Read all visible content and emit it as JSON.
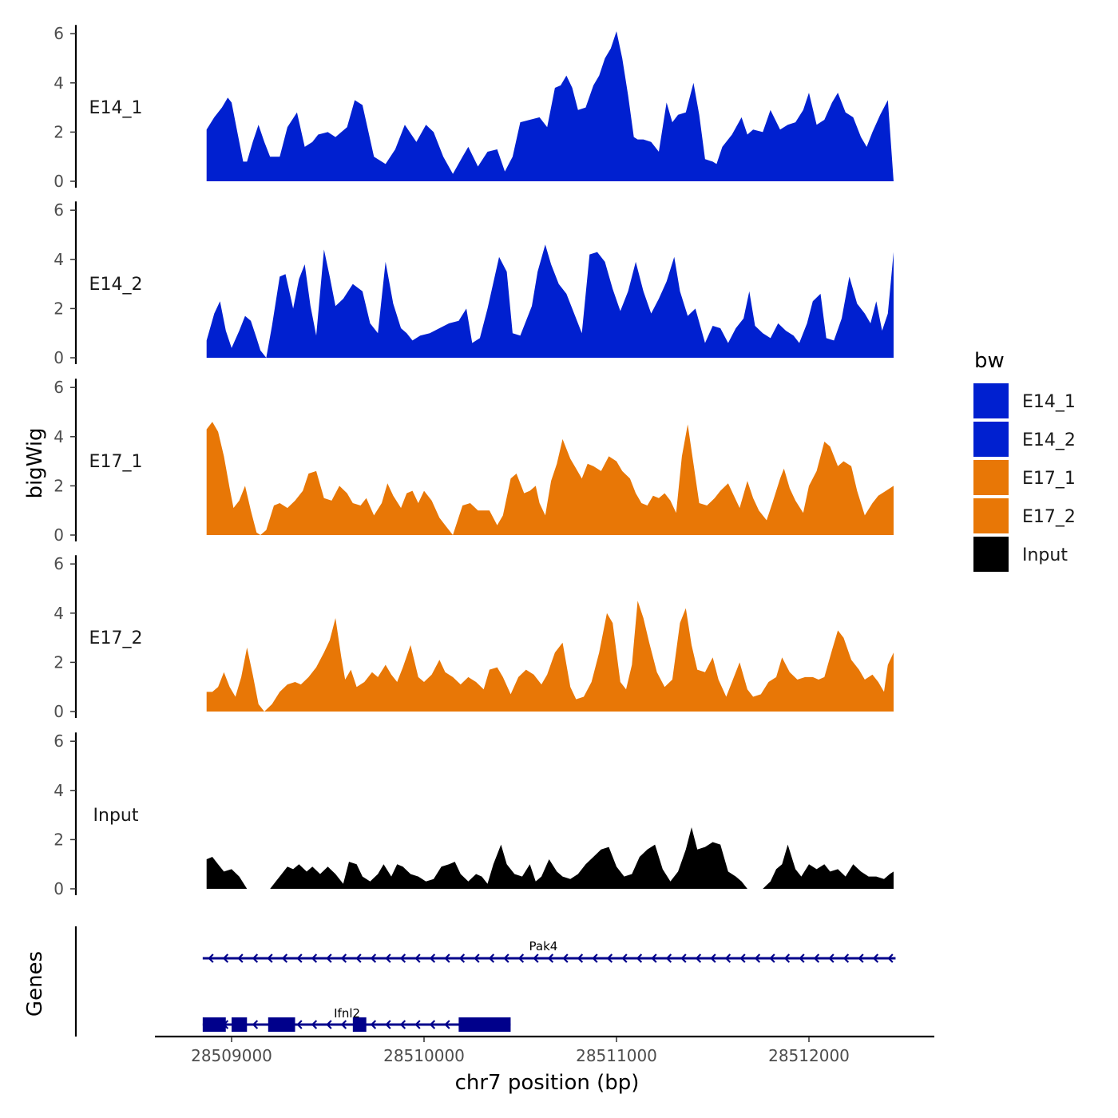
{
  "chart_data": {
    "type": "area",
    "title": "",
    "xlabel": "chr7 position (bp)",
    "ylabel": "bigWig",
    "genes_label": "Genes",
    "xlim": [
      28508650,
      28512630
    ],
    "ylim": [
      0,
      6.3
    ],
    "x_ticks": [
      28509000,
      28510000,
      28511000,
      28512000
    ],
    "x_tick_labels": [
      "28509000",
      "28510000",
      "28511000",
      "28512000"
    ],
    "y_ticks": [
      0,
      2,
      4,
      6
    ],
    "y_tick_labels": [
      "0",
      "2",
      "4",
      "6"
    ],
    "legend": {
      "title": "bw",
      "position": "right",
      "entries": [
        {
          "name": "E14_1",
          "color": "#0020d0"
        },
        {
          "name": "E14_2",
          "color": "#0020d0"
        },
        {
          "name": "E17_1",
          "color": "#e87706"
        },
        {
          "name": "E17_2",
          "color": "#e87706"
        },
        {
          "name": "Input",
          "color": "#000000"
        }
      ]
    },
    "series": [
      {
        "name": "E14_1",
        "color": "#0020d0",
        "x": [
          28508870,
          28508910,
          28508950,
          28508980,
          28509000,
          28509030,
          28509060,
          28509080,
          28509110,
          28509140,
          28509170,
          28509200,
          28509250,
          28509290,
          28509340,
          28509380,
          28509420,
          28509450,
          28509500,
          28509540,
          28509600,
          28509640,
          28509680,
          28509740,
          28509800,
          28509850,
          28509900,
          28509960,
          28510010,
          28510050,
          28510100,
          28510150,
          28510200,
          28510230,
          28510280,
          28510330,
          28510380,
          28510420,
          28510460,
          28510500,
          28510550,
          28510600,
          28510640,
          28510680,
          28510710,
          28510740,
          28510770,
          28510800,
          28510840,
          28510880,
          28510910,
          28510940,
          28510970,
          28511000,
          28511030,
          28511060,
          28511090,
          28511110,
          28511140,
          28511180,
          28511220,
          28511260,
          28511290,
          28511320,
          28511360,
          28511400,
          28511430,
          28511460,
          28511500,
          28511520,
          28511550,
          28511600,
          28511650,
          28511680,
          28511710,
          28511760,
          28511800,
          28511850,
          28511890,
          28511930,
          28511970,
          28512000,
          28512040,
          28512080,
          28512120,
          28512150,
          28512190,
          28512230,
          28512270,
          28512300,
          28512330,
          28512370,
          28512410,
          28512440
        ],
        "y": [
          2.1,
          2.6,
          3.0,
          3.4,
          3.2,
          2.0,
          0.8,
          0.8,
          1.6,
          2.3,
          1.6,
          1.0,
          1.0,
          2.2,
          2.8,
          1.4,
          1.6,
          1.9,
          2.0,
          1.8,
          2.2,
          3.3,
          3.1,
          1.0,
          0.7,
          1.3,
          2.3,
          1.6,
          2.3,
          2.0,
          1.0,
          0.3,
          1.0,
          1.4,
          0.6,
          1.2,
          1.3,
          0.4,
          1.0,
          2.4,
          2.5,
          2.6,
          2.2,
          3.8,
          3.9,
          4.3,
          3.8,
          2.9,
          3.0,
          3.9,
          4.3,
          5.0,
          5.4,
          6.1,
          5.0,
          3.5,
          1.8,
          1.7,
          1.7,
          1.6,
          1.2,
          3.2,
          2.4,
          2.7,
          2.8,
          4.0,
          2.7,
          0.9,
          0.8,
          0.7,
          1.4,
          1.9,
          2.6,
          1.9,
          2.1,
          2.0,
          2.9,
          2.1,
          2.3,
          2.4,
          2.9,
          3.6,
          2.3,
          2.5,
          3.2,
          3.6,
          2.8,
          2.6,
          1.8,
          1.4,
          2.0,
          2.7,
          3.3,
          0.0
        ]
      },
      {
        "name": "E14_2",
        "color": "#0020d0",
        "x": [
          28508870,
          28508910,
          28508940,
          28508970,
          28509000,
          28509040,
          28509070,
          28509100,
          28509130,
          28509150,
          28509180,
          28509210,
          28509250,
          28509280,
          28509320,
          28509350,
          28509380,
          28509410,
          28509440,
          28509480,
          28509510,
          28509540,
          28509580,
          28509630,
          28509680,
          28509720,
          28509760,
          28509800,
          28509840,
          28509880,
          28509910,
          28509940,
          28509980,
          28510030,
          28510080,
          28510130,
          28510180,
          28510220,
          28510250,
          28510290,
          28510330,
          28510390,
          28510430,
          28510460,
          28510500,
          28510560,
          28510590,
          28510630,
          28510660,
          28510700,
          28510740,
          28510780,
          28510820,
          28510860,
          28510900,
          28510940,
          28510980,
          28511020,
          28511060,
          28511100,
          28511140,
          28511180,
          28511220,
          28511260,
          28511300,
          28511330,
          28511370,
          28511410,
          28511460,
          28511500,
          28511540,
          28511580,
          28511620,
          28511660,
          28511690,
          28511720,
          28511760,
          28511800,
          28511840,
          28511880,
          28511920,
          28511950,
          28511990,
          28512020,
          28512060,
          28512090,
          28512130,
          28512170,
          28512210,
          28512250,
          28512290,
          28512320,
          28512350,
          28512380,
          28512410,
          28512440
        ],
        "y": [
          0.7,
          1.8,
          2.3,
          1.1,
          0.4,
          1.1,
          1.7,
          1.5,
          0.8,
          0.3,
          0.0,
          1.3,
          3.3,
          3.4,
          2.0,
          3.2,
          3.8,
          2.1,
          0.9,
          4.4,
          3.3,
          2.1,
          2.4,
          3.0,
          2.7,
          1.4,
          1.0,
          3.9,
          2.2,
          1.2,
          1.0,
          0.7,
          0.9,
          1.0,
          1.2,
          1.4,
          1.5,
          2.0,
          0.6,
          0.8,
          2.0,
          4.1,
          3.5,
          1.0,
          0.9,
          2.1,
          3.5,
          4.6,
          3.8,
          3.0,
          2.6,
          1.8,
          1.0,
          4.2,
          4.3,
          3.9,
          2.8,
          1.9,
          2.7,
          3.9,
          2.7,
          1.8,
          2.4,
          3.1,
          4.1,
          2.7,
          1.7,
          2.0,
          0.6,
          1.3,
          1.2,
          0.6,
          1.2,
          1.6,
          2.7,
          1.3,
          1.0,
          0.8,
          1.4,
          1.1,
          0.9,
          0.6,
          1.4,
          2.3,
          2.6,
          0.8,
          0.7,
          1.6,
          3.3,
          2.2,
          1.8,
          1.4,
          2.3,
          1.1,
          1.8,
          4.3
        ]
      },
      {
        "name": "E17_1",
        "color": "#e87706",
        "x": [
          28508870,
          28508900,
          28508930,
          28508960,
          28508990,
          28509010,
          28509040,
          28509070,
          28509100,
          28509130,
          28509150,
          28509180,
          28509220,
          28509250,
          28509290,
          28509330,
          28509370,
          28509400,
          28509440,
          28509480,
          28509520,
          28509560,
          28509600,
          28509630,
          28509670,
          28509700,
          28509740,
          28509780,
          28509810,
          28509840,
          28509880,
          28509910,
          28509940,
          28509970,
          28510000,
          28510040,
          28510080,
          28510110,
          28510150,
          28510200,
          28510240,
          28510280,
          28510300,
          28510340,
          28510380,
          28510410,
          28510450,
          28510480,
          28510520,
          28510550,
          28510580,
          28510600,
          28510630,
          28510660,
          28510690,
          28510720,
          28510760,
          28510790,
          28510820,
          28510850,
          28510880,
          28510920,
          28510960,
          28511000,
          28511030,
          28511070,
          28511100,
          28511130,
          28511160,
          28511190,
          28511220,
          28511250,
          28511280,
          28511310,
          28511340,
          28511370,
          28511400,
          28511430,
          28511470,
          28511510,
          28511540,
          28511580,
          28511610,
          28511640,
          28511680,
          28511710,
          28511740,
          28511780,
          28511810,
          28511850,
          28511870,
          28511900,
          28511930,
          28511970,
          28512000,
          28512040,
          28512080,
          28512110,
          28512150,
          28512180,
          28512220,
          28512250,
          28512290,
          28512330,
          28512360,
          28512400,
          28512440
        ],
        "y": [
          4.3,
          4.6,
          4.2,
          3.2,
          1.9,
          1.1,
          1.4,
          2.0,
          1.0,
          0.1,
          0.0,
          0.2,
          1.2,
          1.3,
          1.1,
          1.4,
          1.8,
          2.5,
          2.6,
          1.5,
          1.4,
          2.0,
          1.7,
          1.3,
          1.2,
          1.5,
          0.8,
          1.3,
          2.1,
          1.6,
          1.1,
          1.7,
          1.8,
          1.3,
          1.8,
          1.4,
          0.7,
          0.4,
          0.0,
          1.2,
          1.3,
          1.0,
          1.0,
          1.0,
          0.4,
          0.8,
          2.3,
          2.5,
          1.7,
          1.8,
          2.0,
          1.3,
          0.8,
          2.2,
          2.9,
          3.9,
          3.1,
          2.7,
          2.3,
          2.9,
          2.8,
          2.6,
          3.2,
          3.0,
          2.6,
          2.3,
          1.7,
          1.3,
          1.2,
          1.6,
          1.5,
          1.7,
          1.4,
          0.9,
          3.2,
          4.5,
          2.9,
          1.3,
          1.2,
          1.5,
          1.8,
          2.1,
          1.6,
          1.1,
          2.2,
          1.5,
          1.0,
          0.6,
          1.3,
          2.3,
          2.7,
          1.9,
          1.4,
          0.9,
          2.0,
          2.6,
          3.8,
          3.6,
          2.8,
          3.0,
          2.8,
          1.8,
          0.8,
          1.3,
          1.6,
          1.8,
          2.0
        ]
      },
      {
        "name": "E17_2",
        "color": "#e87706",
        "x": [
          28508870,
          28508900,
          28508930,
          28508960,
          28508990,
          28509020,
          28509050,
          28509080,
          28509110,
          28509140,
          28509170,
          28509210,
          28509250,
          28509290,
          28509330,
          28509360,
          28509400,
          28509440,
          28509480,
          28509510,
          28509540,
          28509570,
          28509590,
          28509620,
          28509650,
          28509690,
          28509730,
          28509760,
          28509800,
          28509830,
          28509860,
          28509890,
          28509930,
          28509970,
          28510000,
          28510040,
          28510080,
          28510110,
          28510150,
          28510190,
          28510230,
          28510270,
          28510310,
          28510340,
          28510380,
          28510410,
          28510450,
          28510490,
          28510530,
          28510570,
          28510610,
          28510640,
          28510680,
          28510720,
          28510760,
          28510790,
          28510830,
          28510870,
          28510910,
          28510950,
          28510980,
          28511020,
          28511050,
          28511080,
          28511110,
          28511140,
          28511170,
          28511210,
          28511250,
          28511290,
          28511330,
          28511360,
          28511390,
          28511420,
          28511460,
          28511500,
          28511530,
          28511570,
          28511610,
          28511640,
          28511680,
          28511710,
          28511750,
          28511790,
          28511830,
          28511860,
          28511900,
          28511940,
          28511980,
          28512020,
          28512050,
          28512080,
          28512120,
          28512150,
          28512180,
          28512220,
          28512260,
          28512290,
          28512330,
          28512360,
          28512390,
          28512410,
          28512440
        ],
        "y": [
          0.8,
          0.8,
          1.0,
          1.6,
          1.0,
          0.6,
          1.4,
          2.6,
          1.5,
          0.3,
          0.0,
          0.3,
          0.8,
          1.1,
          1.2,
          1.1,
          1.4,
          1.8,
          2.4,
          2.9,
          3.8,
          2.2,
          1.3,
          1.7,
          1.0,
          1.2,
          1.6,
          1.4,
          1.9,
          1.5,
          1.2,
          1.8,
          2.7,
          1.4,
          1.2,
          1.5,
          2.1,
          1.6,
          1.4,
          1.1,
          1.4,
          1.2,
          0.9,
          1.7,
          1.8,
          1.4,
          0.7,
          1.4,
          1.7,
          1.5,
          1.1,
          1.5,
          2.4,
          2.8,
          1.0,
          0.5,
          0.6,
          1.2,
          2.4,
          4.0,
          3.6,
          1.2,
          0.9,
          1.9,
          4.5,
          3.8,
          2.8,
          1.6,
          1.0,
          1.3,
          3.6,
          4.2,
          2.7,
          1.7,
          1.6,
          2.2,
          1.3,
          0.6,
          1.4,
          2.0,
          0.9,
          0.6,
          0.7,
          1.2,
          1.4,
          2.2,
          1.6,
          1.3,
          1.4,
          1.4,
          1.3,
          1.4,
          2.5,
          3.3,
          3.0,
          2.1,
          1.7,
          1.3,
          1.5,
          1.2,
          0.8,
          1.9,
          2.4
        ]
      },
      {
        "name": "Input",
        "color": "#000000",
        "x": [
          28508870,
          28508900,
          28508930,
          28508960,
          28509000,
          28509040,
          28509080,
          28509110,
          28509140,
          28509170,
          28509200,
          28509230,
          28509260,
          28509290,
          28509320,
          28509350,
          28509390,
          28509420,
          28509460,
          28509500,
          28509540,
          28509580,
          28509610,
          28509650,
          28509680,
          28509720,
          28509760,
          28509790,
          28509830,
          28509860,
          28509890,
          28509930,
          28509970,
          28510010,
          28510050,
          28510090,
          28510130,
          28510160,
          28510190,
          28510230,
          28510270,
          28510300,
          28510330,
          28510360,
          28510400,
          28510430,
          28510470,
          28510510,
          28510550,
          28510580,
          28510610,
          28510650,
          28510690,
          28510720,
          28510760,
          28510800,
          28510840,
          28510880,
          28510920,
          28510960,
          28511000,
          28511040,
          28511080,
          28511120,
          28511160,
          28511200,
          28511240,
          28511280,
          28511320,
          28511360,
          28511390,
          28511420,
          28511460,
          28511500,
          28511540,
          28511580,
          28511620,
          28511650,
          28511680,
          28511720,
          28511760,
          28511800,
          28511830,
          28511860,
          28511890,
          28511930,
          28511960,
          28512000,
          28512040,
          28512080,
          28512110,
          28512150,
          28512190,
          28512230,
          28512270,
          28512310,
          28512350,
          28512390,
          28512420,
          28512440
        ],
        "y": [
          1.2,
          1.3,
          1.0,
          0.7,
          0.8,
          0.5,
          0.0,
          0.0,
          0.0,
          0.0,
          0.0,
          0.3,
          0.6,
          0.9,
          0.8,
          1.0,
          0.7,
          0.9,
          0.6,
          0.9,
          0.6,
          0.2,
          1.1,
          1.0,
          0.5,
          0.3,
          0.6,
          1.0,
          0.5,
          1.0,
          0.9,
          0.6,
          0.5,
          0.3,
          0.4,
          0.9,
          1.0,
          1.1,
          0.6,
          0.3,
          0.6,
          0.5,
          0.2,
          1.0,
          1.8,
          1.0,
          0.6,
          0.5,
          1.0,
          0.3,
          0.5,
          1.2,
          0.7,
          0.5,
          0.4,
          0.6,
          1.0,
          1.3,
          1.6,
          1.7,
          0.9,
          0.5,
          0.6,
          1.3,
          1.6,
          1.8,
          0.8,
          0.3,
          0.7,
          1.6,
          2.5,
          1.6,
          1.7,
          1.9,
          1.8,
          0.7,
          0.5,
          0.3,
          0.0,
          0.0,
          0.0,
          0.3,
          0.8,
          1.0,
          1.8,
          0.8,
          0.5,
          1.0,
          0.8,
          1.0,
          0.7,
          0.8,
          0.5,
          1.0,
          0.7,
          0.5,
          0.5,
          0.4,
          0.6,
          0.7
        ]
      }
    ],
    "genes": [
      {
        "name": "Pak4",
        "strand": "-",
        "color": "#00008b",
        "start": 28508850,
        "end": 28512450,
        "label_pos": 28510620,
        "exons": []
      },
      {
        "name": "Ifnl2",
        "strand": "-",
        "color": "#00008b",
        "start": 28508850,
        "end": 28510450,
        "label_pos": 28509600,
        "exons": [
          [
            28508850,
            28508970
          ],
          [
            28509000,
            28509080
          ],
          [
            28509190,
            28509330
          ],
          [
            28509630,
            28509700
          ],
          [
            28510180,
            28510450
          ]
        ]
      }
    ]
  }
}
